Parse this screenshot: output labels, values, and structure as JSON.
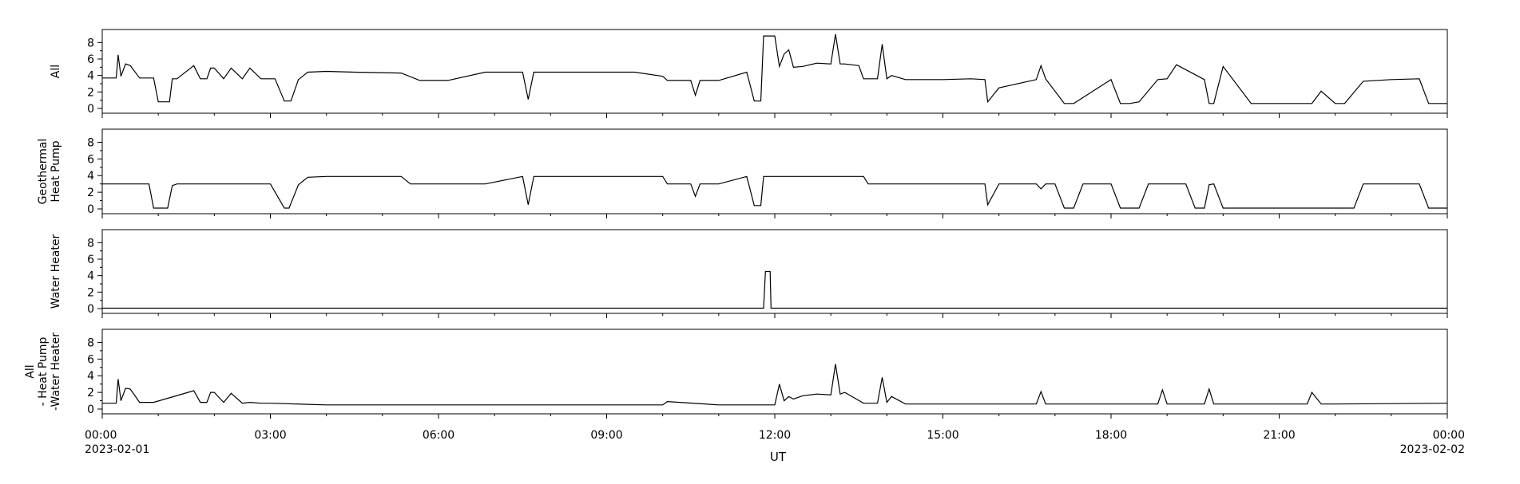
{
  "chart_data": {
    "type": "line",
    "xlabel": "UT",
    "x_axis": {
      "range": [
        "2023-02-01 00:00",
        "2023-02-02 00:00"
      ],
      "tick_labels": [
        "00:00",
        "03:00",
        "06:00",
        "09:00",
        "12:00",
        "15:00",
        "18:00",
        "21:00",
        "00:00"
      ],
      "date_labels": [
        "2023-02-01",
        "",
        "",
        "",
        "",
        "",
        "",
        "",
        "2023-02-02"
      ],
      "grid": false
    },
    "y_axis": {
      "range": [
        0,
        9
      ],
      "tick_labels": [
        "0",
        "2",
        "4",
        "6",
        "8"
      ]
    },
    "panels": [
      {
        "ylabel": [
          "All"
        ],
        "x": [
          "00:00",
          "00:15",
          "00:17",
          "00:20",
          "00:25",
          "00:30",
          "00:40",
          "00:55",
          "01:00",
          "01:12",
          "01:15",
          "01:20",
          "01:38",
          "01:45",
          "01:52",
          "01:56",
          "02:00",
          "02:10",
          "02:18",
          "02:30",
          "02:38",
          "02:50",
          "03:05",
          "03:15",
          "03:22",
          "03:30",
          "03:40",
          "04:00",
          "04:30",
          "05:20",
          "05:40",
          "06:10",
          "06:50",
          "07:30",
          "07:36",
          "07:42",
          "08:00",
          "08:45",
          "09:00",
          "09:30",
          "10:00",
          "10:05",
          "10:30",
          "10:35",
          "10:40",
          "11:00",
          "11:30",
          "11:38",
          "11:45",
          "11:48",
          "12:00",
          "12:05",
          "12:10",
          "12:15",
          "12:20",
          "12:30",
          "12:45",
          "13:00",
          "13:05",
          "13:10",
          "13:15",
          "13:30",
          "13:35",
          "13:50",
          "13:55",
          "14:00",
          "14:05",
          "14:20",
          "15:00",
          "15:30",
          "15:45",
          "15:48",
          "16:00",
          "16:40",
          "16:45",
          "16:50",
          "17:10",
          "17:20",
          "18:00",
          "18:10",
          "18:20",
          "18:30",
          "18:50",
          "19:00",
          "19:10",
          "19:40",
          "19:45",
          "19:50",
          "20:00",
          "20:30",
          "21:00",
          "21:20",
          "21:35",
          "21:45",
          "22:00",
          "22:10",
          "22:30",
          "23:00",
          "23:30",
          "23:40",
          "24:00"
        ],
        "values": [
          3.7,
          3.7,
          6.5,
          3.9,
          5.4,
          5.2,
          3.7,
          3.7,
          0.8,
          0.8,
          3.6,
          3.6,
          5.2,
          3.6,
          3.6,
          4.9,
          4.9,
          3.6,
          4.9,
          3.6,
          4.9,
          3.6,
          3.6,
          0.9,
          0.9,
          3.5,
          4.4,
          4.5,
          4.4,
          4.3,
          3.4,
          3.4,
          4.4,
          4.4,
          1.1,
          4.4,
          4.4,
          4.4,
          4.4,
          4.4,
          3.9,
          3.4,
          3.4,
          1.6,
          3.4,
          3.4,
          4.4,
          0.9,
          0.9,
          8.8,
          8.8,
          5.1,
          6.6,
          7.1,
          5.0,
          5.1,
          5.5,
          5.4,
          9.0,
          5.4,
          5.4,
          5.2,
          3.6,
          3.6,
          7.8,
          3.6,
          4.0,
          3.5,
          3.5,
          3.6,
          3.5,
          0.8,
          2.5,
          3.5,
          5.2,
          3.6,
          0.6,
          0.6,
          3.5,
          0.6,
          0.6,
          0.8,
          3.5,
          3.6,
          5.3,
          3.5,
          0.6,
          0.6,
          5.1,
          0.6,
          0.6,
          0.6,
          0.6,
          2.1,
          0.6,
          0.6,
          3.3,
          3.5,
          3.6,
          0.6,
          0.6
        ]
      },
      {
        "ylabel": [
          "Geothermal",
          "Heat Pump"
        ],
        "x": [
          "00:00",
          "00:50",
          "00:55",
          "01:10",
          "01:15",
          "01:20",
          "02:00",
          "03:00",
          "03:15",
          "03:20",
          "03:30",
          "03:40",
          "04:00",
          "05:20",
          "05:30",
          "06:50",
          "07:30",
          "07:36",
          "07:42",
          "08:00",
          "09:00",
          "10:00",
          "10:05",
          "10:30",
          "10:35",
          "10:40",
          "11:00",
          "11:30",
          "11:38",
          "11:45",
          "11:48",
          "12:00",
          "13:00",
          "13:35",
          "13:40",
          "15:00",
          "15:45",
          "15:48",
          "16:00",
          "16:30",
          "16:40",
          "16:45",
          "16:50",
          "17:00",
          "17:10",
          "17:20",
          "17:30",
          "18:00",
          "18:10",
          "18:20",
          "18:30",
          "18:40",
          "19:00",
          "19:20",
          "19:30",
          "19:40",
          "19:45",
          "19:50",
          "20:00",
          "20:30",
          "21:00",
          "21:30",
          "22:00",
          "22:10",
          "22:20",
          "22:30",
          "23:00",
          "23:30",
          "23:40",
          "24:00"
        ],
        "values": [
          3.0,
          3.0,
          0.1,
          0.1,
          2.8,
          3.0,
          3.0,
          3.0,
          0.1,
          0.1,
          2.9,
          3.8,
          3.9,
          3.9,
          3.0,
          3.0,
          3.9,
          0.5,
          3.9,
          3.9,
          3.9,
          3.9,
          3.0,
          3.0,
          1.5,
          3.0,
          3.0,
          3.9,
          0.4,
          0.4,
          3.9,
          3.9,
          3.9,
          3.9,
          3.0,
          3.0,
          3.0,
          0.5,
          3.0,
          3.0,
          3.0,
          2.4,
          3.0,
          3.0,
          0.1,
          0.1,
          3.0,
          3.0,
          0.1,
          0.1,
          0.1,
          3.0,
          3.0,
          3.0,
          0.1,
          0.1,
          2.9,
          3.0,
          0.1,
          0.1,
          0.1,
          0.1,
          0.1,
          0.1,
          0.1,
          3.0,
          3.0,
          3.0,
          0.1,
          0.1
        ]
      },
      {
        "ylabel": [
          "Water Heater"
        ],
        "x": [
          "00:00",
          "11:48",
          "11:50",
          "11:55",
          "11:56",
          "24:00"
        ],
        "values": [
          0.05,
          0.05,
          4.5,
          4.5,
          0.05,
          0.05
        ]
      },
      {
        "ylabel": [
          "All",
          "- Heat Pump",
          "-Water Heater"
        ],
        "x": [
          "00:00",
          "00:15",
          "00:17",
          "00:20",
          "00:25",
          "00:30",
          "00:40",
          "00:55",
          "01:38",
          "01:45",
          "01:52",
          "01:56",
          "02:00",
          "02:10",
          "02:18",
          "02:30",
          "02:38",
          "02:50",
          "03:00",
          "04:00",
          "06:00",
          "09:00",
          "10:00",
          "10:05",
          "11:00",
          "12:00",
          "12:05",
          "12:10",
          "12:15",
          "12:20",
          "12:30",
          "12:45",
          "13:00",
          "13:05",
          "13:10",
          "13:15",
          "13:35",
          "13:50",
          "13:55",
          "14:00",
          "14:05",
          "14:20",
          "15:00",
          "16:40",
          "16:45",
          "16:50",
          "18:00",
          "18:50",
          "18:55",
          "19:00",
          "19:40",
          "19:45",
          "19:50",
          "21:30",
          "21:35",
          "21:45",
          "22:00",
          "24:00"
        ],
        "values": [
          0.7,
          0.7,
          3.6,
          1.0,
          2.5,
          2.4,
          0.8,
          0.8,
          2.2,
          0.8,
          0.8,
          2.0,
          2.0,
          0.8,
          1.9,
          0.7,
          0.8,
          0.7,
          0.7,
          0.5,
          0.5,
          0.5,
          0.5,
          0.9,
          0.5,
          0.5,
          3.0,
          1.0,
          1.5,
          1.2,
          1.6,
          1.8,
          1.7,
          5.4,
          1.8,
          2.0,
          0.7,
          0.7,
          3.8,
          0.8,
          1.5,
          0.6,
          0.6,
          0.6,
          2.1,
          0.6,
          0.6,
          0.6,
          2.3,
          0.6,
          0.6,
          2.4,
          0.6,
          0.6,
          2.0,
          0.6,
          0.6,
          0.7
        ]
      }
    ]
  }
}
